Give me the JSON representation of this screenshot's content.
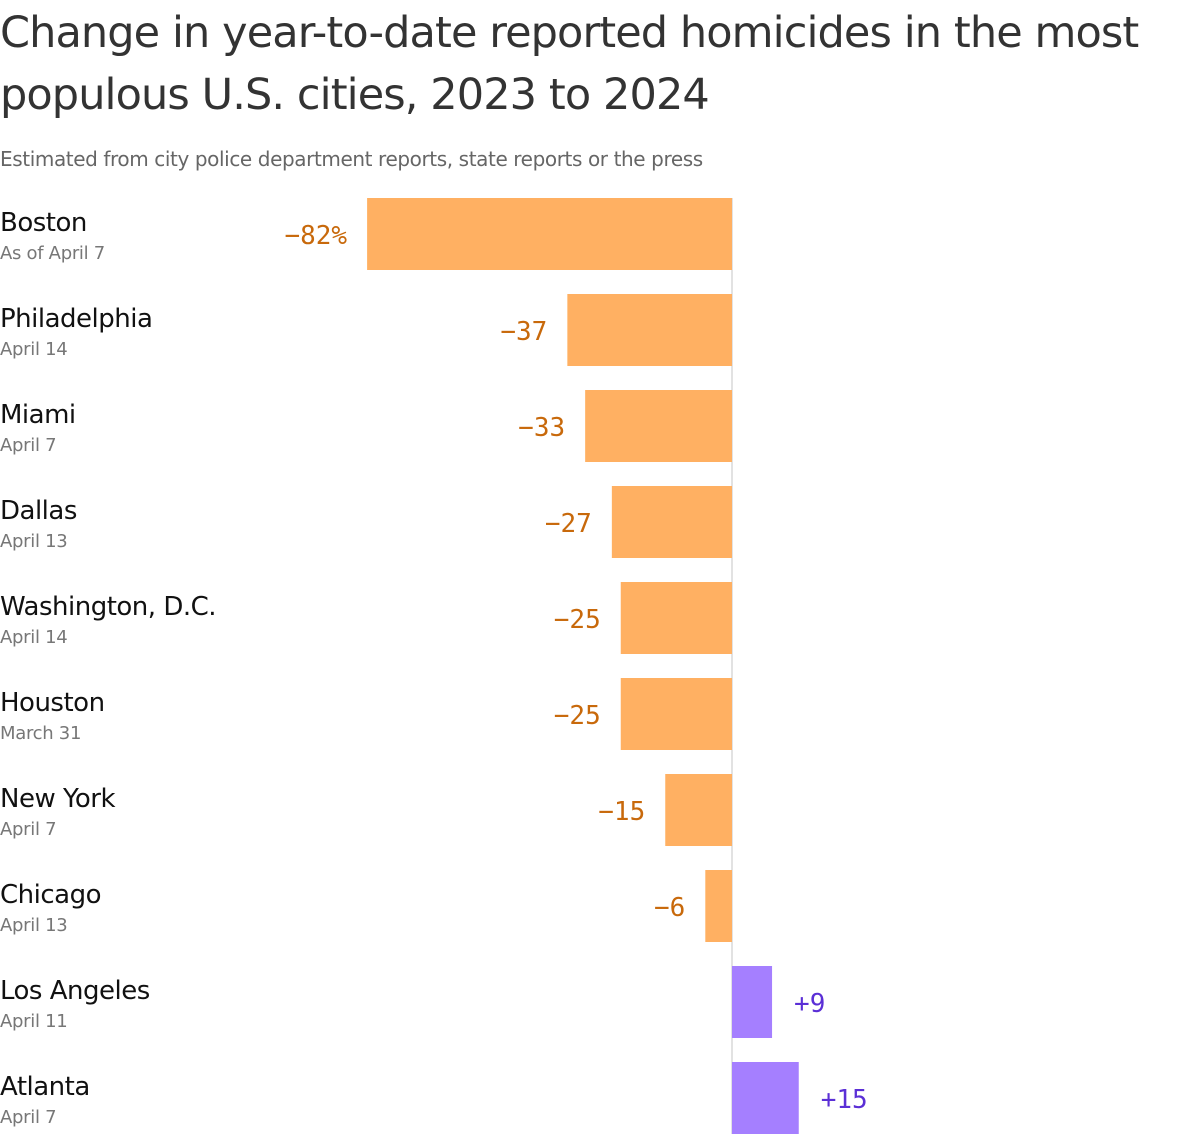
{
  "title": "Change in year-to-date reported homicides in the most populous U.S. cities, 2023 to 2024",
  "subtitle": "Estimated from city police department reports, state reports or the press",
  "colors": {
    "negative_bar": "#FFB062",
    "negative_text": "#C8690B",
    "positive_bar": "#A57FFF",
    "positive_text": "#5B2FD6",
    "zero_line": "#D9D9D9"
  },
  "chart_data": {
    "type": "bar",
    "orientation": "horizontal",
    "title": "Change in year-to-date reported homicides in the most populous U.S. cities, 2023 to 2024",
    "subtitle": "Estimated from city police department reports, state reports or the press",
    "unit": "%",
    "categories": [
      "Boston",
      "Philadelphia",
      "Miami",
      "Dallas",
      "Washington, D.C.",
      "Houston",
      "New York",
      "Chicago",
      "Los Angeles",
      "Atlanta"
    ],
    "dates": [
      "As of April 7",
      "April 14",
      "April 7",
      "April 13",
      "April 14",
      "March 31",
      "April 7",
      "April 13",
      "April 11",
      "April 7"
    ],
    "values": [
      -82,
      -37,
      -33,
      -27,
      -25,
      -25,
      -15,
      -6,
      9,
      15
    ],
    "value_labels": [
      "−82%",
      "−37",
      "−33",
      "−27",
      "−25",
      "−25",
      "−15",
      "−6",
      "+9",
      "+15"
    ],
    "xlim": [
      -82,
      15
    ],
    "grid": false,
    "legend": "none"
  }
}
